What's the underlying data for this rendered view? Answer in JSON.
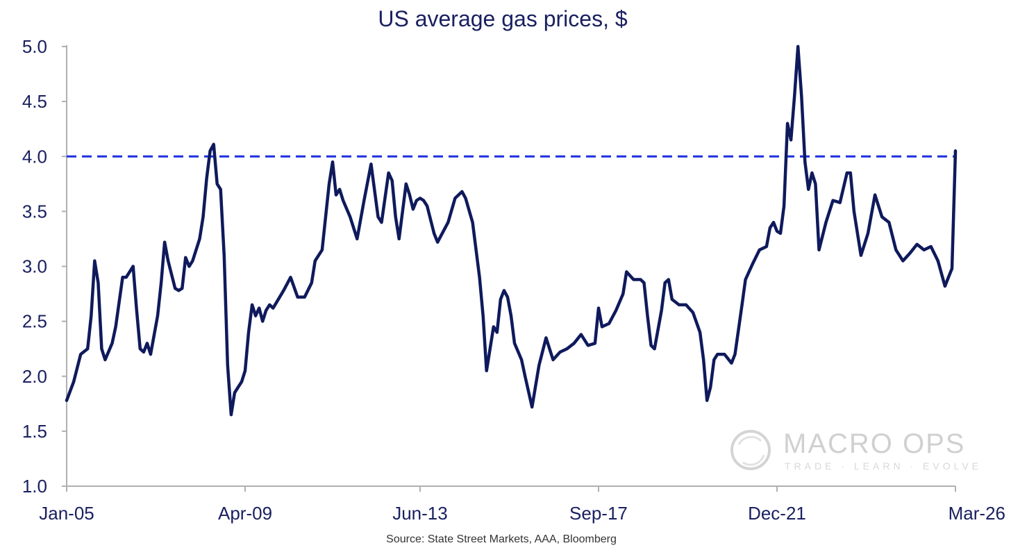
{
  "chart_data": {
    "type": "line",
    "title": "US average gas prices, $",
    "source": "Source: State Street Markets, AAA, Bloomberg",
    "xlabel": "",
    "ylabel": "",
    "ylim": [
      1.0,
      5.0
    ],
    "xlim": [
      "2005-01",
      "2026-03"
    ],
    "y_ticks": [
      "1.0",
      "1.5",
      "2.0",
      "2.5",
      "3.0",
      "3.5",
      "4.0",
      "4.5",
      "5.0"
    ],
    "x_ticks": [
      {
        "label": "Jan-05",
        "date": "2005-01"
      },
      {
        "label": "Apr-09",
        "date": "2009-04"
      },
      {
        "label": "Jun-13",
        "date": "2013-06"
      },
      {
        "label": "Sep-17",
        "date": "2017-09"
      },
      {
        "label": "Dec-21",
        "date": "2021-12"
      },
      {
        "label": "Mar-26",
        "date": "2026-03"
      }
    ],
    "grid": false,
    "reference_line": {
      "y": 4.0,
      "style": "dashed",
      "color": "#1a2fe0"
    },
    "series": [
      {
        "color": "#0f1a5c",
        "points": [
          [
            "2005-01",
            1.78
          ],
          [
            "2005-03",
            1.95
          ],
          [
            "2005-05",
            2.2
          ],
          [
            "2005-07",
            2.25
          ],
          [
            "2005-08",
            2.55
          ],
          [
            "2005-09",
            3.05
          ],
          [
            "2005-10",
            2.85
          ],
          [
            "2005-11",
            2.25
          ],
          [
            "2005-12",
            2.15
          ],
          [
            "2006-02",
            2.3
          ],
          [
            "2006-03",
            2.45
          ],
          [
            "2006-05",
            2.9
          ],
          [
            "2006-06",
            2.9
          ],
          [
            "2006-07",
            2.95
          ],
          [
            "2006-08",
            3.0
          ],
          [
            "2006-09",
            2.6
          ],
          [
            "2006-10",
            2.25
          ],
          [
            "2006-11",
            2.22
          ],
          [
            "2006-12",
            2.3
          ],
          [
            "2007-01",
            2.2
          ],
          [
            "2007-03",
            2.55
          ],
          [
            "2007-04",
            2.85
          ],
          [
            "2007-05",
            3.22
          ],
          [
            "2007-06",
            3.05
          ],
          [
            "2007-08",
            2.8
          ],
          [
            "2007-09",
            2.78
          ],
          [
            "2007-10",
            2.8
          ],
          [
            "2007-11",
            3.08
          ],
          [
            "2007-12",
            3.0
          ],
          [
            "2008-01",
            3.05
          ],
          [
            "2008-03",
            3.25
          ],
          [
            "2008-04",
            3.45
          ],
          [
            "2008-05",
            3.8
          ],
          [
            "2008-06",
            4.05
          ],
          [
            "2008-07",
            4.11
          ],
          [
            "2008-08",
            3.75
          ],
          [
            "2008-09",
            3.7
          ],
          [
            "2008-10",
            3.1
          ],
          [
            "2008-11",
            2.1
          ],
          [
            "2008-12",
            1.65
          ],
          [
            "2009-01",
            1.85
          ],
          [
            "2009-02",
            1.9
          ],
          [
            "2009-03",
            1.95
          ],
          [
            "2009-04",
            2.05
          ],
          [
            "2009-05",
            2.4
          ],
          [
            "2009-06",
            2.65
          ],
          [
            "2009-07",
            2.55
          ],
          [
            "2009-08",
            2.62
          ],
          [
            "2009-09",
            2.5
          ],
          [
            "2009-10",
            2.6
          ],
          [
            "2009-11",
            2.65
          ],
          [
            "2009-12",
            2.62
          ],
          [
            "2010-03",
            2.78
          ],
          [
            "2010-05",
            2.9
          ],
          [
            "2010-07",
            2.72
          ],
          [
            "2010-09",
            2.72
          ],
          [
            "2010-11",
            2.85
          ],
          [
            "2010-12",
            3.05
          ],
          [
            "2011-02",
            3.15
          ],
          [
            "2011-04",
            3.75
          ],
          [
            "2011-05",
            3.95
          ],
          [
            "2011-06",
            3.65
          ],
          [
            "2011-07",
            3.7
          ],
          [
            "2011-08",
            3.6
          ],
          [
            "2011-10",
            3.45
          ],
          [
            "2011-12",
            3.25
          ],
          [
            "2012-02",
            3.6
          ],
          [
            "2012-04",
            3.93
          ],
          [
            "2012-06",
            3.45
          ],
          [
            "2012-07",
            3.4
          ],
          [
            "2012-09",
            3.85
          ],
          [
            "2012-10",
            3.78
          ],
          [
            "2012-11",
            3.45
          ],
          [
            "2012-12",
            3.25
          ],
          [
            "2013-02",
            3.75
          ],
          [
            "2013-03",
            3.65
          ],
          [
            "2013-04",
            3.52
          ],
          [
            "2013-05",
            3.6
          ],
          [
            "2013-06",
            3.62
          ],
          [
            "2013-07",
            3.6
          ],
          [
            "2013-08",
            3.55
          ],
          [
            "2013-10",
            3.3
          ],
          [
            "2013-11",
            3.22
          ],
          [
            "2013-12",
            3.28
          ],
          [
            "2014-02",
            3.4
          ],
          [
            "2014-04",
            3.62
          ],
          [
            "2014-06",
            3.68
          ],
          [
            "2014-07",
            3.62
          ],
          [
            "2014-09",
            3.4
          ],
          [
            "2014-10",
            3.15
          ],
          [
            "2014-11",
            2.9
          ],
          [
            "2014-12",
            2.55
          ],
          [
            "2015-01",
            2.05
          ],
          [
            "2015-03",
            2.45
          ],
          [
            "2015-04",
            2.4
          ],
          [
            "2015-05",
            2.7
          ],
          [
            "2015-06",
            2.78
          ],
          [
            "2015-07",
            2.72
          ],
          [
            "2015-08",
            2.55
          ],
          [
            "2015-09",
            2.3
          ],
          [
            "2015-11",
            2.15
          ],
          [
            "2015-12",
            2.0
          ],
          [
            "2016-02",
            1.72
          ],
          [
            "2016-04",
            2.1
          ],
          [
            "2016-06",
            2.35
          ],
          [
            "2016-08",
            2.15
          ],
          [
            "2016-10",
            2.22
          ],
          [
            "2016-12",
            2.25
          ],
          [
            "2017-02",
            2.3
          ],
          [
            "2017-04",
            2.38
          ],
          [
            "2017-06",
            2.28
          ],
          [
            "2017-08",
            2.3
          ],
          [
            "2017-09",
            2.62
          ],
          [
            "2017-10",
            2.45
          ],
          [
            "2017-12",
            2.48
          ],
          [
            "2018-02",
            2.6
          ],
          [
            "2018-04",
            2.75
          ],
          [
            "2018-05",
            2.95
          ],
          [
            "2018-07",
            2.88
          ],
          [
            "2018-09",
            2.88
          ],
          [
            "2018-10",
            2.85
          ],
          [
            "2018-11",
            2.55
          ],
          [
            "2018-12",
            2.28
          ],
          [
            "2019-01",
            2.25
          ],
          [
            "2019-03",
            2.6
          ],
          [
            "2019-04",
            2.85
          ],
          [
            "2019-05",
            2.88
          ],
          [
            "2019-06",
            2.7
          ],
          [
            "2019-08",
            2.65
          ],
          [
            "2019-10",
            2.65
          ],
          [
            "2019-12",
            2.58
          ],
          [
            "2020-02",
            2.4
          ],
          [
            "2020-03",
            2.15
          ],
          [
            "2020-04",
            1.78
          ],
          [
            "2020-05",
            1.9
          ],
          [
            "2020-06",
            2.15
          ],
          [
            "2020-07",
            2.2
          ],
          [
            "2020-09",
            2.2
          ],
          [
            "2020-11",
            2.12
          ],
          [
            "2020-12",
            2.2
          ],
          [
            "2021-02",
            2.65
          ],
          [
            "2021-03",
            2.88
          ],
          [
            "2021-05",
            3.02
          ],
          [
            "2021-07",
            3.15
          ],
          [
            "2021-09",
            3.18
          ],
          [
            "2021-10",
            3.35
          ],
          [
            "2021-11",
            3.4
          ],
          [
            "2021-12",
            3.32
          ],
          [
            "2022-01",
            3.3
          ],
          [
            "2022-02",
            3.55
          ],
          [
            "2022-03",
            4.3
          ],
          [
            "2022-04",
            4.15
          ],
          [
            "2022-05",
            4.55
          ],
          [
            "2022-06",
            5.0
          ],
          [
            "2022-07",
            4.55
          ],
          [
            "2022-08",
            3.95
          ],
          [
            "2022-09",
            3.7
          ],
          [
            "2022-10",
            3.85
          ],
          [
            "2022-11",
            3.75
          ],
          [
            "2022-12",
            3.15
          ],
          [
            "2023-02",
            3.4
          ],
          [
            "2023-04",
            3.6
          ],
          [
            "2023-06",
            3.58
          ],
          [
            "2023-08",
            3.85
          ],
          [
            "2023-09",
            3.85
          ],
          [
            "2023-10",
            3.5
          ],
          [
            "2023-12",
            3.1
          ],
          [
            "2024-02",
            3.3
          ],
          [
            "2024-04",
            3.65
          ],
          [
            "2024-06",
            3.45
          ],
          [
            "2024-08",
            3.4
          ],
          [
            "2024-10",
            3.15
          ],
          [
            "2024-12",
            3.05
          ],
          [
            "2025-02",
            3.12
          ],
          [
            "2025-04",
            3.2
          ],
          [
            "2025-06",
            3.15
          ],
          [
            "2025-08",
            3.18
          ],
          [
            "2025-10",
            3.05
          ],
          [
            "2025-12",
            2.82
          ],
          [
            "2026-01",
            2.9
          ],
          [
            "2026-02",
            2.98
          ],
          [
            "2026-03",
            4.05
          ]
        ]
      }
    ]
  },
  "watermark": {
    "name": "MACRO OPS",
    "tagline": "TRADE · LEARN · EVOLVE",
    "color": "#d0d0d0"
  },
  "colors": {
    "text": "#1a2060",
    "axis": "#b0b0b0",
    "line": "#0f1a5c",
    "reference": "#1a2fe0"
  }
}
